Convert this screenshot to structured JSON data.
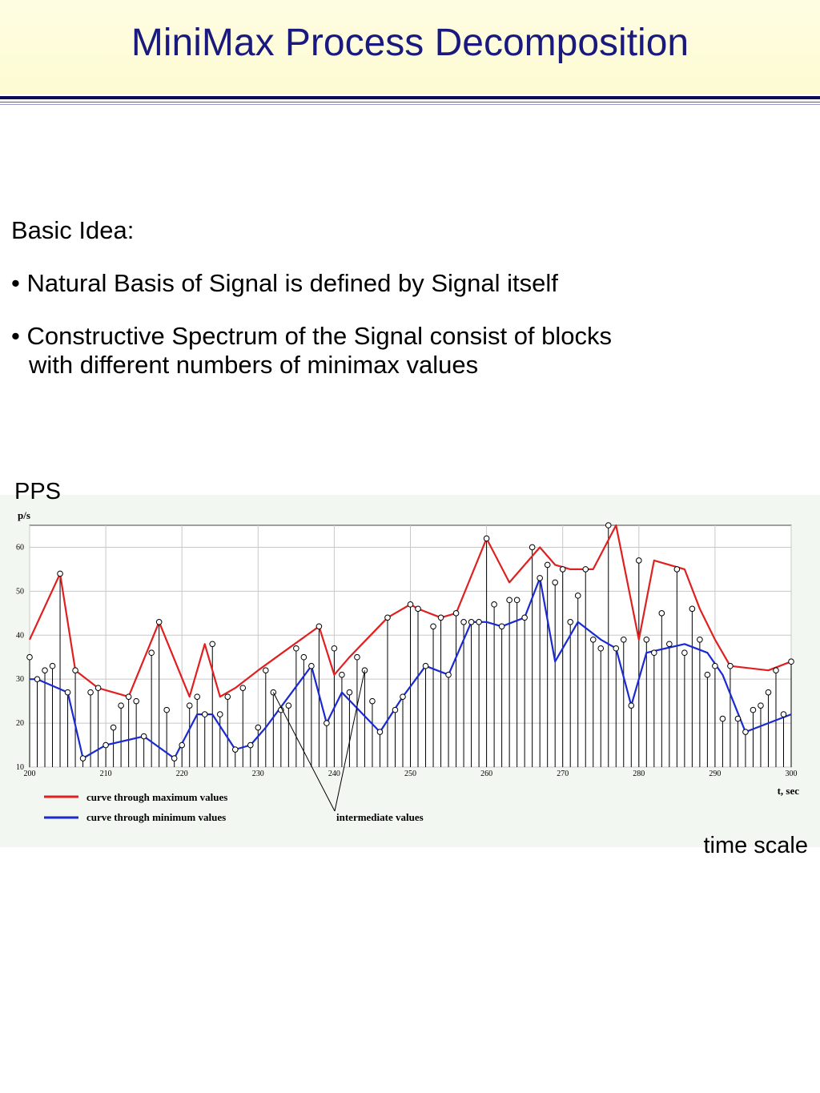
{
  "slide": {
    "title": "MiniMax Process Decomposition",
    "heading": "Basic Idea:",
    "bullets": [
      "• Natural Basis of Signal is defined by Signal itself",
      "• Constructive Spectrum of the Signal consist of blocks"
    ],
    "bullet_continuation": "with different numbers of minimax values",
    "pps_label": "PPS",
    "time_scale_label": "time scale"
  },
  "colors": {
    "title": "#1a1a7e",
    "header_bg": "#fdfbd2",
    "max_curve": "#e02020",
    "min_curve": "#1a2ad0",
    "chart_bg": "#f3f7f1"
  },
  "chart_data": {
    "type": "line",
    "ylabel": "p/s",
    "xlabel": "t, sec",
    "xlim": [
      200,
      300
    ],
    "ylim": [
      10,
      65
    ],
    "x_ticks": [
      200,
      210,
      220,
      230,
      240,
      250,
      260,
      270,
      280,
      290,
      300
    ],
    "y_ticks": [
      10,
      20,
      30,
      40,
      50,
      60
    ],
    "legend": [
      {
        "label": "curve through maximum values",
        "color": "#e02020"
      },
      {
        "label": "curve through minimum values",
        "color": "#1a2ad0"
      }
    ],
    "annotation": "intermediate values",
    "signal": {
      "x": [
        200,
        201,
        202,
        203,
        204,
        205,
        206,
        207,
        208,
        209,
        210,
        211,
        212,
        213,
        214,
        215,
        216,
        217,
        218,
        219,
        220,
        221,
        222,
        223,
        224,
        225,
        226,
        227,
        228,
        229,
        230,
        231,
        232,
        233,
        234,
        235,
        236,
        237,
        238,
        239,
        240,
        241,
        242,
        243,
        244,
        245,
        246,
        247,
        248,
        249,
        250,
        251,
        252,
        253,
        254,
        255,
        256,
        257,
        258,
        259,
        260,
        261,
        262,
        263,
        264,
        265,
        266,
        267,
        268,
        269,
        270,
        271,
        272,
        273,
        274,
        275,
        276,
        277,
        278,
        279,
        280,
        281,
        282,
        283,
        284,
        285,
        286,
        287,
        288,
        289,
        290,
        291,
        292,
        293,
        294,
        295,
        296,
        297,
        298,
        299,
        300
      ],
      "y": [
        35,
        30,
        32,
        33,
        54,
        27,
        32,
        12,
        27,
        28,
        15,
        19,
        24,
        26,
        25,
        17,
        36,
        43,
        23,
        12,
        15,
        24,
        26,
        22,
        38,
        22,
        26,
        14,
        28,
        15,
        19,
        32,
        27,
        23,
        24,
        37,
        35,
        33,
        42,
        20,
        37,
        31,
        27,
        35,
        32,
        25,
        18,
        44,
        23,
        26,
        47,
        46,
        33,
        42,
        44,
        31,
        45,
        43,
        43,
        43,
        62,
        47,
        42,
        48,
        48,
        44,
        60,
        53,
        56,
        52,
        55,
        43,
        49,
        55,
        39,
        37,
        65,
        37,
        39,
        24,
        57,
        39,
        36,
        45,
        38,
        55,
        36,
        46,
        39,
        31,
        33,
        21,
        33,
        21,
        18,
        23,
        24,
        27,
        32,
        22,
        34
      ]
    },
    "series": [
      {
        "name": "curve through maximum values",
        "x": [
          200,
          204,
          206,
          209,
          213,
          217,
          221,
          223,
          225,
          227,
          230,
          234,
          238,
          240,
          242,
          247,
          250,
          251,
          254,
          256,
          260,
          263,
          267,
          269,
          271,
          274,
          277,
          280,
          282,
          286,
          288,
          290,
          292,
          297,
          300
        ],
        "y": [
          39,
          54,
          32,
          28,
          26,
          43,
          26,
          38,
          26,
          28,
          32,
          37,
          42,
          31,
          35,
          44,
          47,
          46,
          44,
          45,
          62,
          52,
          60,
          56,
          55,
          55,
          65,
          39,
          57,
          55,
          46,
          39,
          33,
          32,
          34
        ]
      },
      {
        "name": "curve through minimum values",
        "x": [
          200,
          201,
          205,
          207,
          210,
          215,
          219,
          222,
          224,
          227,
          229,
          231,
          237,
          239,
          241,
          246,
          249,
          252,
          255,
          258,
          260,
          262,
          265,
          267,
          269,
          272,
          275,
          277,
          279,
          281,
          286,
          289,
          291,
          294,
          300
        ],
        "y": [
          30,
          30,
          27,
          12,
          15,
          17,
          12,
          22,
          22,
          14,
          15,
          19,
          33,
          20,
          27,
          18,
          26,
          33,
          31,
          43,
          43,
          42,
          44,
          53,
          34,
          43,
          39,
          37,
          24,
          36,
          38,
          36,
          31,
          18,
          22
        ]
      }
    ]
  }
}
